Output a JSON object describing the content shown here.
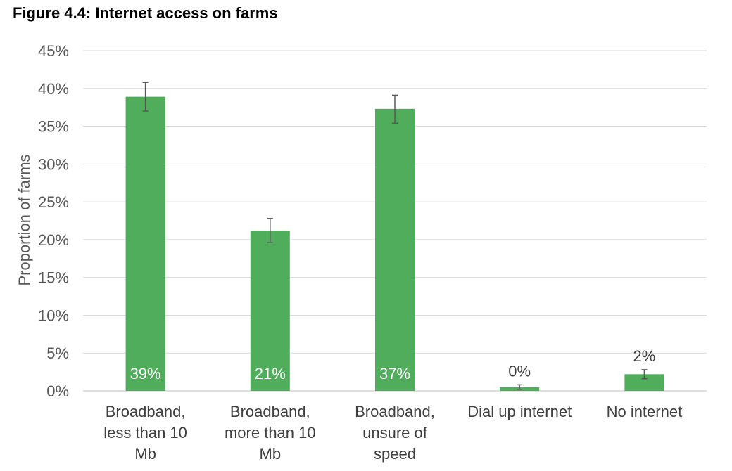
{
  "chart_data": {
    "type": "bar",
    "title": "Figure 4.4: Internet access on farms",
    "ylabel": "Proportion of farms",
    "xlabel": "",
    "ylim": [
      0,
      45
    ],
    "yticks": [
      "0%",
      "5%",
      "10%",
      "15%",
      "20%",
      "25%",
      "30%",
      "35%",
      "40%",
      "45%"
    ],
    "grid": true,
    "bar_color": "#4fad5b",
    "categories": [
      [
        "Broadband,",
        "less than 10",
        "Mb"
      ],
      [
        "Broadband,",
        "more than 10",
        "Mb"
      ],
      [
        "Broadband,",
        "unsure of",
        "speed"
      ],
      [
        "Dial up internet"
      ],
      [
        "No internet"
      ]
    ],
    "values": [
      38.9,
      21.2,
      37.3,
      0.5,
      2.2
    ],
    "error_low": [
      37.0,
      19.6,
      35.4,
      0.2,
      1.6
    ],
    "error_high": [
      40.8,
      22.8,
      39.1,
      0.8,
      2.8
    ],
    "data_labels": [
      "39%",
      "21%",
      "37%",
      "0%",
      "2%"
    ]
  }
}
